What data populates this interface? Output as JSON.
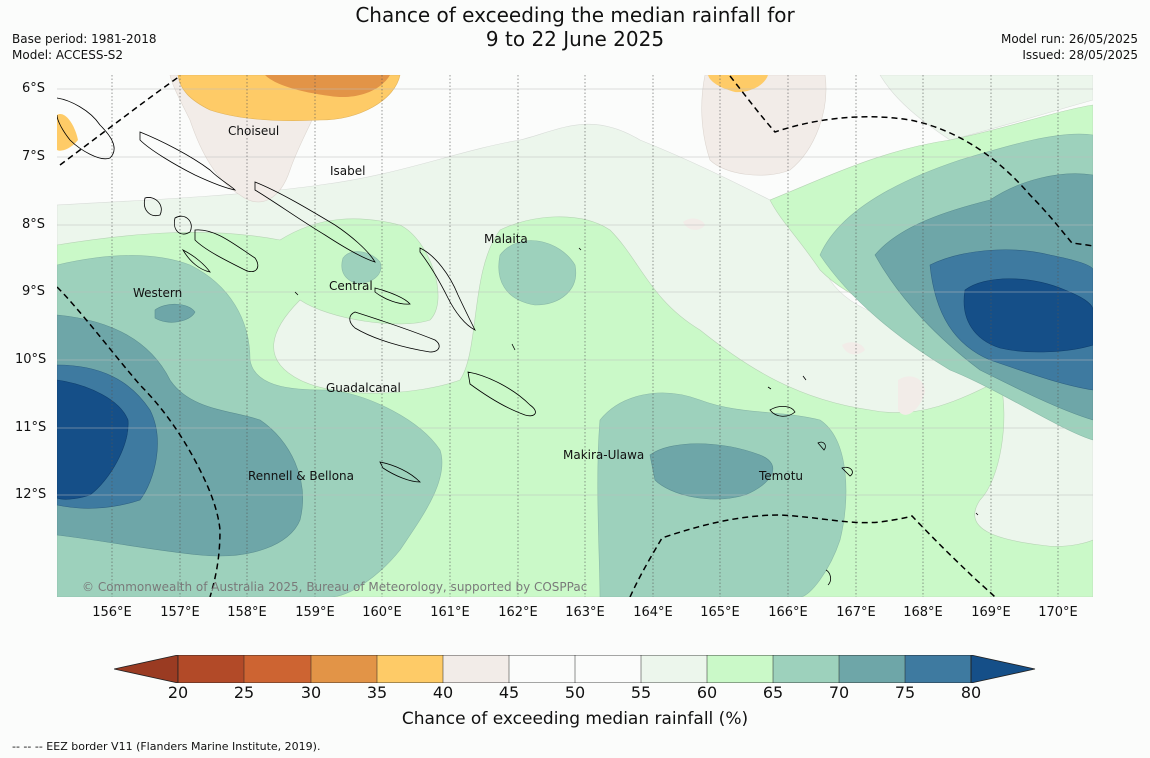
{
  "title_line1": "Chance of exceeding the median rainfall for",
  "title_line2": "9 to 22 June 2025",
  "base_period": "Base period: 1981-2018",
  "model": "Model: ACCESS-S2",
  "model_run": "Model run: 26/05/2025",
  "issued": "Issued: 28/05/2025",
  "copyright": "© Commonwealth of Australia 2025, Bureau of Meteorology, supported by COSPPac",
  "footnote": "--  --  -- EEZ border V11 (Flanders Marine Institute, 2019).",
  "lat_labels": [
    "6°S",
    "7°S",
    "8°S",
    "9°S",
    "10°S",
    "11°S",
    "12°S"
  ],
  "lon_labels": [
    "156°E",
    "157°E",
    "158°E",
    "159°E",
    "160°E",
    "161°E",
    "162°E",
    "163°E",
    "164°E",
    "165°E",
    "166°E",
    "167°E",
    "168°E",
    "169°E",
    "170°E"
  ],
  "regions": {
    "choiseul": "Choiseul",
    "isabel": "Isabel",
    "malaita": "Malaita",
    "western": "Western",
    "central": "Central",
    "guadalcanal": "Guadalcanal",
    "makira": "Makira-Ulawa",
    "rennell": "Rennell & Bellona",
    "temotu": "Temotu"
  },
  "colorbar": {
    "label": "Chance of exceeding median rainfall (%)",
    "ticks": [
      "20",
      "25",
      "30",
      "35",
      "40",
      "45",
      "50",
      "55",
      "60",
      "65",
      "70",
      "75",
      "80"
    ],
    "colors": {
      "lt20": "#9a3b22",
      "c20_25": "#b24a28",
      "c25_30": "#cd6432",
      "c30_35": "#e29447",
      "c35_40": "#fecb67",
      "c40_45": "#f2ece8",
      "c45_50": "#fbfcfb",
      "c50_55": "#fbfcfb",
      "c55_60": "#ecf6ec",
      "c60_65": "#caf9c8",
      "c65_70": "#9dd1bc",
      "c70_75": "#6ea6a8",
      "c75_80": "#3e7aa0",
      "gt80": "#154f88"
    }
  }
}
